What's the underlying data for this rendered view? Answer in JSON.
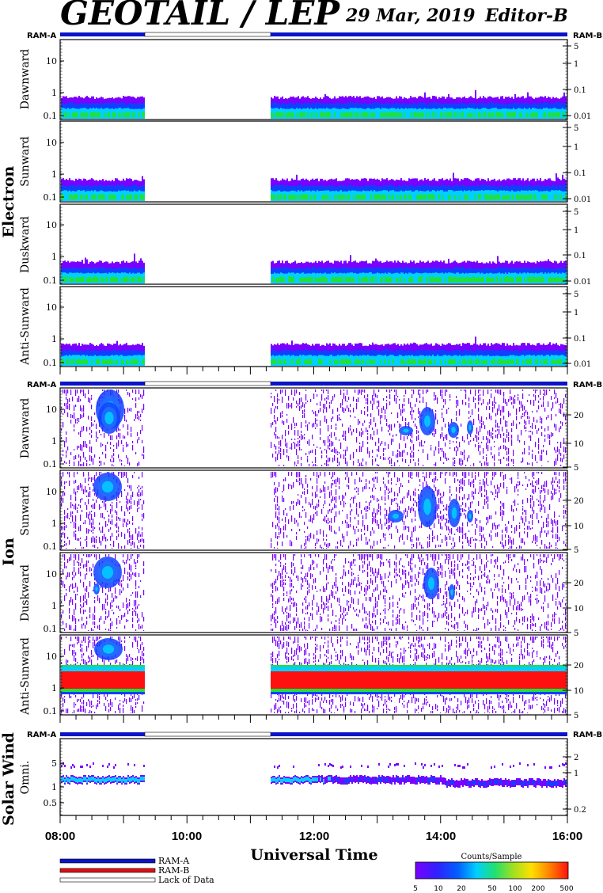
{
  "header": {
    "title": "GEOTAIL / LEP",
    "date": "29 Mar, 2019",
    "editor": "Editor-B"
  },
  "ram_labels": {
    "left": "RAM-A",
    "right": "RAM-B"
  },
  "x_axis": {
    "title": "Universal Time",
    "ticks": [
      "08:00",
      "10:00",
      "12:00",
      "14:00",
      "16:00"
    ]
  },
  "legend": {
    "ram_a": "RAM-A",
    "ram_b": "RAM-B",
    "lack_of_data": "Lack of Data",
    "colorbar_title": "Counts/Sample",
    "colorbar_ticks": [
      "5",
      "10",
      "20",
      "50",
      "100",
      "200",
      "500"
    ]
  },
  "colors": {
    "ram_a": "#0a14c8",
    "ram_b": "#e01010",
    "purple": "#7a00ff",
    "blue": "#1040ff",
    "cyan": "#00d0ff",
    "green": "#20e040",
    "red": "#ff1010"
  },
  "chart_data": {
    "type": "heatmap",
    "time_range": [
      "08:00",
      "16:00"
    ],
    "data_gap": [
      "09:20",
      "11:20"
    ],
    "groups": [
      {
        "name": "Electron",
        "left_ticks": [
          "10",
          "1",
          "0.1"
        ],
        "right_ticks": [
          "5",
          "1",
          "0.1",
          "0.01"
        ],
        "panels": [
          {
            "label": "Dawnward",
            "content": "electron"
          },
          {
            "label": "Sunward",
            "content": "electron"
          },
          {
            "label": "Duskward",
            "content": "electron"
          },
          {
            "label": "Anti-Sunward",
            "content": "electron"
          }
        ]
      },
      {
        "name": "Ion",
        "left_ticks": [
          "10",
          "1",
          "0.1"
        ],
        "right_ticks": [
          "20",
          "10",
          "5"
        ],
        "panels": [
          {
            "label": "Dawnward",
            "content": "ion"
          },
          {
            "label": "Sunward",
            "content": "ion"
          },
          {
            "label": "Duskward",
            "content": "ion"
          },
          {
            "label": "Anti-Sunward",
            "content": "ion-sw"
          }
        ]
      },
      {
        "name": "Solar Wind",
        "left_ticks": [
          "5",
          "1",
          "0.5"
        ],
        "right_ticks": [
          "2",
          "1",
          "0.2"
        ],
        "panels": [
          {
            "label": "Omni.",
            "content": "solarwind"
          }
        ]
      }
    ]
  }
}
